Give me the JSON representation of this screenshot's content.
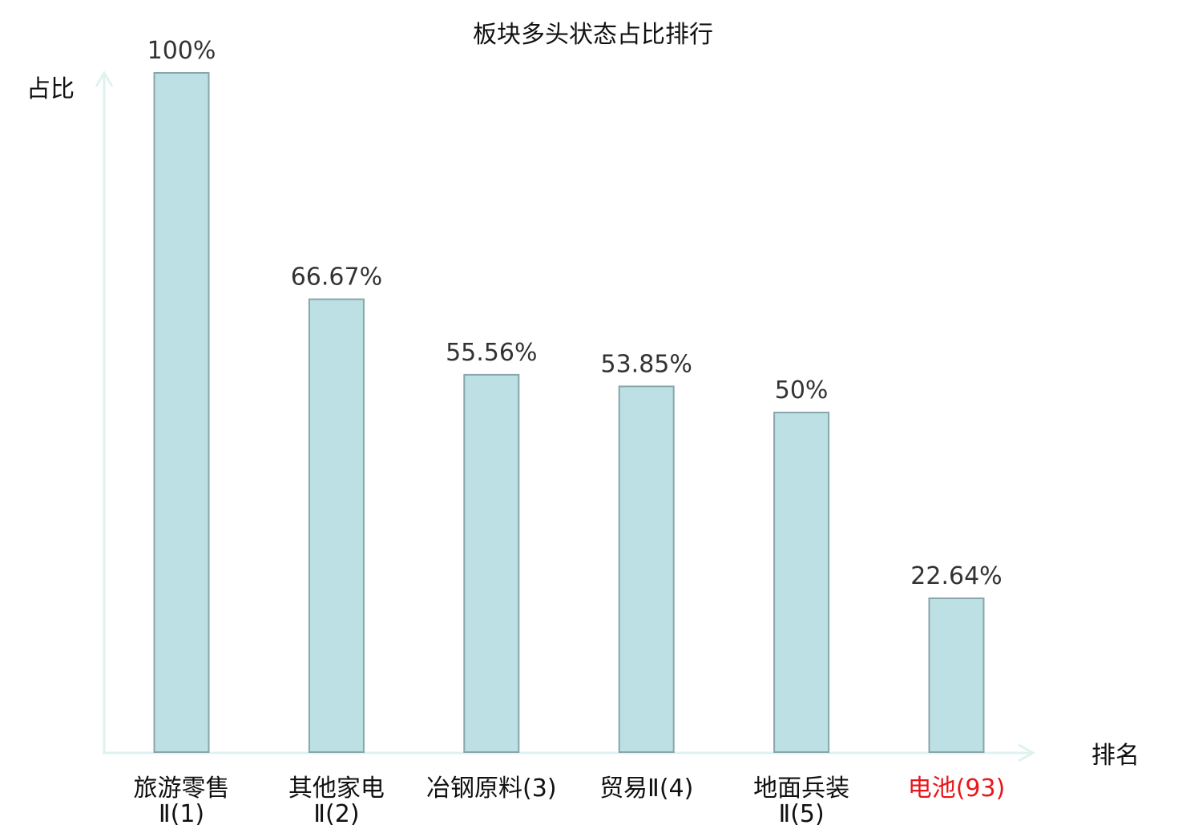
{
  "chart_data": {
    "type": "bar",
    "title": "板块多头状态占比排行",
    "ylabel": "占比",
    "xlabel": "排名",
    "ylim": [
      0,
      100
    ],
    "categories": [
      {
        "name_lines": [
          "旅游零售",
          "Ⅱ(1)"
        ],
        "highlight": false
      },
      {
        "name_lines": [
          "其他家电",
          "Ⅱ(2)"
        ],
        "highlight": false
      },
      {
        "name_lines": [
          "冶钢原料(3)"
        ],
        "highlight": false
      },
      {
        "name_lines": [
          "贸易Ⅱ(4)"
        ],
        "highlight": false
      },
      {
        "name_lines": [
          "地面兵装",
          "Ⅱ(5)"
        ],
        "highlight": false
      },
      {
        "name_lines": [
          "电池(93)"
        ],
        "highlight": true
      }
    ],
    "values": [
      100,
      66.67,
      55.56,
      53.85,
      50,
      22.64
    ],
    "value_labels": [
      "100%",
      "66.67%",
      "55.56%",
      "53.85%",
      "50%",
      "22.64%"
    ],
    "colors": {
      "bar_fill": "#bce0e3",
      "bar_stroke": "#88a6ab",
      "axis": "#dff2ef",
      "highlight_text": "#e8161d"
    }
  }
}
